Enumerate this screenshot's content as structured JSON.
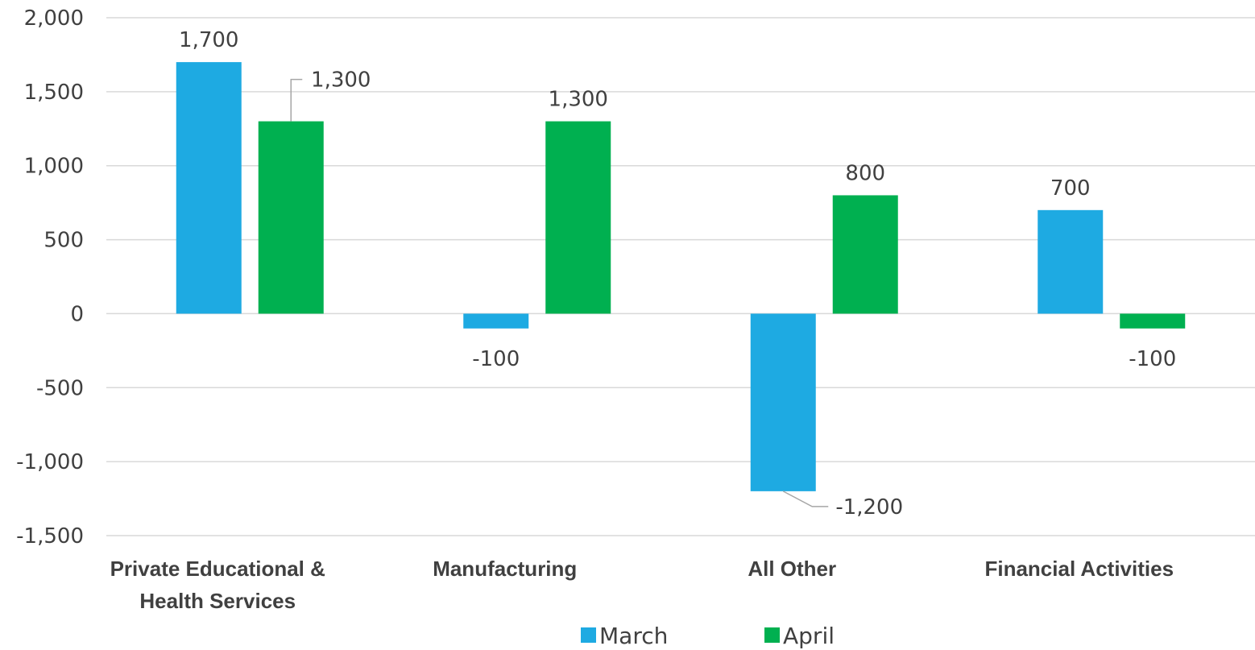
{
  "chart_data": {
    "type": "bar",
    "categories": [
      "Private Educational & Health Services",
      "Manufacturing",
      "All Other",
      "Financial Activities"
    ],
    "category_lines": [
      [
        "Private Educational &",
        "Health Services"
      ],
      [
        "Manufacturing"
      ],
      [
        "All Other"
      ],
      [
        "Financial Activities"
      ]
    ],
    "series": [
      {
        "name": "March",
        "values": [
          1700,
          -100,
          -1200,
          700
        ],
        "color": "#1eaae2"
      },
      {
        "name": "April",
        "values": [
          1300,
          1300,
          800,
          -100
        ],
        "color": "#00b050"
      }
    ],
    "data_labels": {
      "March": [
        "1,700",
        "-100",
        "-1,200",
        "700"
      ],
      "April": [
        "1,300",
        "1,300",
        "800",
        "-100"
      ]
    },
    "ylim": [
      -1500,
      2000
    ],
    "yticks": [
      2000,
      1500,
      1000,
      500,
      0,
      -500,
      -1000,
      -1500
    ],
    "ytick_labels": [
      "2,000",
      "1,500",
      "1,000",
      "500",
      "0",
      "-500",
      "-1,000",
      "-1,500"
    ],
    "title": "",
    "xlabel": "",
    "ylabel": "",
    "grid": true,
    "legend": {
      "position": "bottom",
      "entries": [
        "March",
        "April"
      ]
    },
    "colors": {
      "grid": "#d9d9d9",
      "text": "#404040",
      "leader": "#a6a6a6"
    }
  }
}
